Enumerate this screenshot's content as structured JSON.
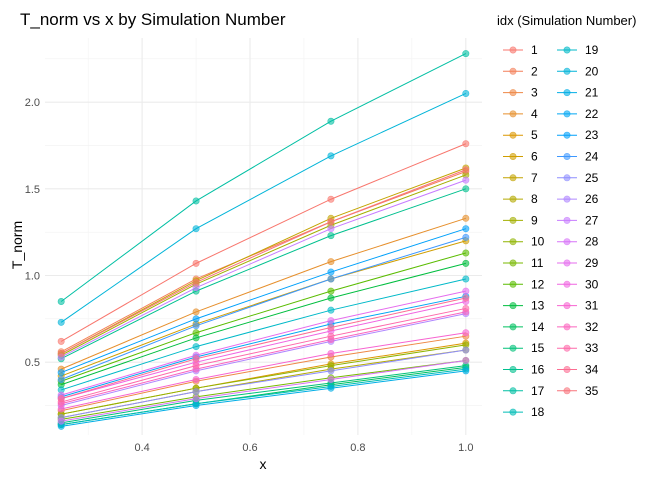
{
  "chart_data": {
    "type": "line",
    "title": "T_norm vs x by Simulation Number",
    "xlabel": "x",
    "ylabel": "T_norm",
    "x": [
      0.25,
      0.5,
      0.75,
      1.0
    ],
    "xlim": [
      0.22,
      1.03
    ],
    "ylim": [
      0.08,
      2.37
    ],
    "x_ticks": [
      0.4,
      0.6,
      0.8,
      1.0
    ],
    "x_tick_labels": [
      "0.4",
      "0.6",
      "0.8",
      "1.0"
    ],
    "y_ticks": [
      0.5,
      1.0,
      1.5,
      2.0
    ],
    "y_tick_labels": [
      "0.5",
      "1.0",
      "1.5",
      "2.0"
    ],
    "grid": true,
    "legend": {
      "title": "idx (Simulation Number)",
      "position": "right",
      "columns": 2
    },
    "series": [
      {
        "name": "1",
        "color": "#F8766D",
        "values": [
          0.62,
          1.07,
          1.44,
          1.76
        ]
      },
      {
        "name": "2",
        "color": "#F47F58",
        "values": [
          0.56,
          0.98,
          1.31,
          1.6
        ]
      },
      {
        "name": "3",
        "color": "#EE8744",
        "values": [
          0.22,
          0.39,
          0.53,
          0.65
        ]
      },
      {
        "name": "4",
        "color": "#E68F2C",
        "values": [
          0.46,
          0.79,
          1.08,
          1.33
        ]
      },
      {
        "name": "5",
        "color": "#DC9700",
        "values": [
          0.2,
          0.35,
          0.49,
          0.61
        ]
      },
      {
        "name": "6",
        "color": "#D09E00",
        "values": [
          0.42,
          0.72,
          0.98,
          1.2
        ]
      },
      {
        "name": "7",
        "color": "#C3A400",
        "values": [
          0.55,
          0.97,
          1.33,
          1.62
        ]
      },
      {
        "name": "8",
        "color": "#B4AA00",
        "values": [
          0.18,
          0.33,
          0.46,
          0.57
        ]
      },
      {
        "name": "9",
        "color": "#A3AF00",
        "values": [
          0.54,
          0.95,
          1.29,
          1.58
        ]
      },
      {
        "name": "10",
        "color": "#90B400",
        "values": [
          0.2,
          0.35,
          0.48,
          0.6
        ]
      },
      {
        "name": "11",
        "color": "#78B800",
        "values": [
          0.17,
          0.3,
          0.41,
          0.51
        ]
      },
      {
        "name": "12",
        "color": "#5ABC00",
        "values": [
          0.39,
          0.67,
          0.91,
          1.13
        ]
      },
      {
        "name": "13",
        "color": "#00BE3F",
        "values": [
          0.37,
          0.64,
          0.87,
          1.07
        ]
      },
      {
        "name": "14",
        "color": "#00C05F",
        "values": [
          0.14,
          0.26,
          0.37,
          0.47
        ]
      },
      {
        "name": "15",
        "color": "#00C179",
        "values": [
          0.15,
          0.28,
          0.38,
          0.48
        ]
      },
      {
        "name": "16",
        "color": "#00C08E",
        "values": [
          0.52,
          0.91,
          1.23,
          1.5
        ]
      },
      {
        "name": "17",
        "color": "#00BFA3",
        "values": [
          0.85,
          1.43,
          1.89,
          2.28
        ]
      },
      {
        "name": "18",
        "color": "#00BDB6",
        "values": [
          0.14,
          0.26,
          0.36,
          0.46
        ]
      },
      {
        "name": "19",
        "color": "#00B9C8",
        "values": [
          0.34,
          0.59,
          0.8,
          0.98
        ]
      },
      {
        "name": "20",
        "color": "#00B4D8",
        "values": [
          0.73,
          1.27,
          1.69,
          2.05
        ]
      },
      {
        "name": "21",
        "color": "#00AEE6",
        "values": [
          0.13,
          0.25,
          0.35,
          0.45
        ]
      },
      {
        "name": "22",
        "color": "#00A6F3",
        "values": [
          0.3,
          0.53,
          0.72,
          0.88
        ]
      },
      {
        "name": "23",
        "color": "#00A0FA",
        "values": [
          0.44,
          0.75,
          1.02,
          1.27
        ]
      },
      {
        "name": "24",
        "color": "#3D98FF",
        "values": [
          0.4,
          0.71,
          0.98,
          1.22
        ]
      },
      {
        "name": "25",
        "color": "#8E8EFF",
        "values": [
          0.18,
          0.33,
          0.45,
          0.57
        ]
      },
      {
        "name": "26",
        "color": "#AF86FF",
        "values": [
          0.25,
          0.45,
          0.62,
          0.78
        ]
      },
      {
        "name": "27",
        "color": "#C77CFF",
        "values": [
          0.53,
          0.93,
          1.27,
          1.55
        ]
      },
      {
        "name": "28",
        "color": "#D773F8",
        "values": [
          0.16,
          0.29,
          0.4,
          0.51
        ]
      },
      {
        "name": "29",
        "color": "#E56CEE",
        "values": [
          0.31,
          0.54,
          0.74,
          0.91
        ]
      },
      {
        "name": "30",
        "color": "#F065E1",
        "values": [
          0.29,
          0.5,
          0.68,
          0.85
        ]
      },
      {
        "name": "31",
        "color": "#F763D0",
        "values": [
          0.23,
          0.4,
          0.55,
          0.67
        ]
      },
      {
        "name": "32",
        "color": "#FB64BE",
        "values": [
          0.26,
          0.46,
          0.63,
          0.79
        ]
      },
      {
        "name": "33",
        "color": "#FE68A9",
        "values": [
          0.27,
          0.48,
          0.65,
          0.81
        ]
      },
      {
        "name": "34",
        "color": "#FC6D92",
        "values": [
          0.29,
          0.52,
          0.7,
          0.87
        ]
      },
      {
        "name": "35",
        "color": "#F8737C",
        "values": [
          0.55,
          0.96,
          1.31,
          1.61
        ]
      }
    ]
  }
}
